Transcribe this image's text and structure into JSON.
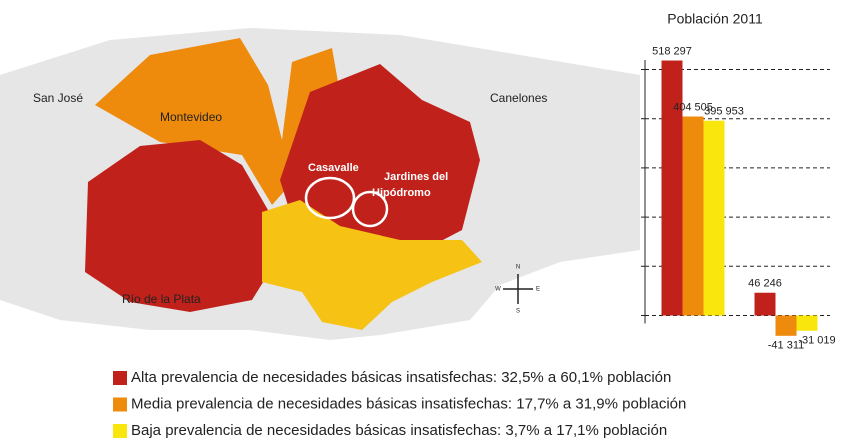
{
  "map": {
    "labels": {
      "san_jose": "San José",
      "montevideo": "Montevideo",
      "canelones": "Canelones",
      "casavalle": "Casavalle",
      "jardines": [
        "Jardines del",
        "Hipódromo"
      ],
      "rio": "Río de la Plata"
    },
    "compass": {
      "n": "N",
      "s": "S",
      "w": "W",
      "e": "E"
    }
  },
  "chart_data": {
    "type": "bar",
    "title": "Población 2011",
    "categories": [
      null,
      null
    ],
    "series": [
      {
        "name": "Alta prevalencia de necesidades básicas insatisfechas: 32,5% a 60,1% población",
        "color": "#c0221b",
        "values": [
          518297,
          46246
        ],
        "value_labels": [
          "518 297",
          "46 246"
        ]
      },
      {
        "name": "Media prevalencia de necesidades básicas insatisfechas: 17,7% a 31,9% población",
        "color": "#ee8a0c",
        "values": [
          404505,
          -41311
        ],
        "value_labels": [
          "404 505",
          "-41 311"
        ]
      },
      {
        "name": "Baja prevalencia de necesidades básicas insatisfechas: 3,7% a 17,1% población",
        "color": "#f9e60c",
        "values": [
          395953,
          -31019
        ],
        "value_labels": [
          "395 953",
          "-31 019"
        ]
      }
    ],
    "ylim": [
      -60000,
      560000
    ],
    "yticks": [
      0,
      100000,
      200000,
      300000,
      400000,
      500000
    ],
    "grid": true
  }
}
